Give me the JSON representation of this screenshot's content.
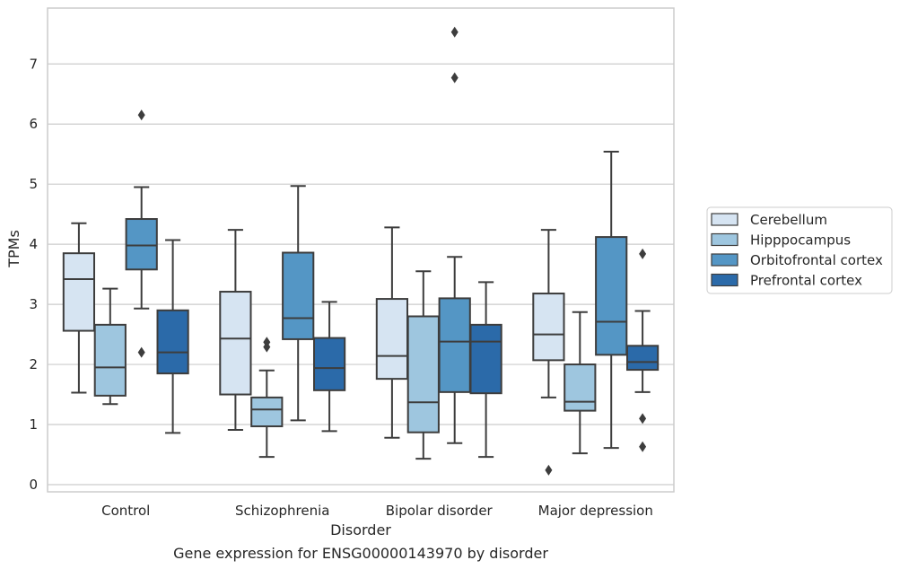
{
  "chart_data": {
    "type": "box",
    "title": "",
    "caption": "Gene expression for ENSG00000143970 by disorder",
    "xlabel": "Disorder",
    "ylabel": "TPMs",
    "ylim": [
      -0.12,
      7.93
    ],
    "yticks": [
      0,
      1,
      2,
      3,
      4,
      5,
      6,
      7
    ],
    "grid": true,
    "legend_position": "right",
    "categories": [
      "Control",
      "Schizophrenia",
      "Bipolar disorder",
      "Major depression"
    ],
    "series": [
      {
        "name": "Cerebellum",
        "color": "#d6e4f2",
        "boxes": [
          {
            "whislo": 1.53,
            "q1": 2.56,
            "med": 3.42,
            "q3": 3.85,
            "whishi": 4.35,
            "fliers": []
          },
          {
            "whislo": 0.91,
            "q1": 1.5,
            "med": 2.43,
            "q3": 3.21,
            "whishi": 4.24,
            "fliers": []
          },
          {
            "whislo": 0.78,
            "q1": 1.76,
            "med": 2.14,
            "q3": 3.09,
            "whishi": 4.28,
            "fliers": []
          },
          {
            "whislo": 1.45,
            "q1": 2.07,
            "med": 2.5,
            "q3": 3.18,
            "whishi": 4.24,
            "fliers": [
              0.24
            ]
          }
        ]
      },
      {
        "name": "Hipppocampus",
        "color": "#9ec6df",
        "boxes": [
          {
            "whislo": 1.34,
            "q1": 1.48,
            "med": 1.95,
            "q3": 2.66,
            "whishi": 3.26,
            "fliers": []
          },
          {
            "whislo": 0.46,
            "q1": 0.97,
            "med": 1.25,
            "q3": 1.45,
            "whishi": 1.9,
            "fliers": [
              2.29,
              2.37
            ]
          },
          {
            "whislo": 0.43,
            "q1": 0.87,
            "med": 1.37,
            "q3": 2.8,
            "whishi": 3.55,
            "fliers": []
          },
          {
            "whislo": 0.52,
            "q1": 1.23,
            "med": 1.38,
            "q3": 2.0,
            "whishi": 2.87,
            "fliers": []
          }
        ]
      },
      {
        "name": "Orbitofrontal cortex",
        "color": "#5496c5",
        "boxes": [
          {
            "whislo": 2.93,
            "q1": 3.58,
            "med": 3.98,
            "q3": 4.42,
            "whishi": 4.95,
            "fliers": [
              2.2,
              6.15
            ]
          },
          {
            "whislo": 1.07,
            "q1": 2.42,
            "med": 2.77,
            "q3": 3.86,
            "whishi": 4.97,
            "fliers": []
          },
          {
            "whislo": 0.69,
            "q1": 1.54,
            "med": 2.38,
            "q3": 3.1,
            "whishi": 3.79,
            "fliers": [
              6.77,
              7.53
            ]
          },
          {
            "whislo": 0.61,
            "q1": 2.16,
            "med": 2.71,
            "q3": 4.12,
            "whishi": 5.54,
            "fliers": []
          }
        ]
      },
      {
        "name": "Prefrontal cortex",
        "color": "#2b6aa9",
        "boxes": [
          {
            "whislo": 0.86,
            "q1": 1.85,
            "med": 2.2,
            "q3": 2.9,
            "whishi": 4.07,
            "fliers": []
          },
          {
            "whislo": 0.89,
            "q1": 1.57,
            "med": 1.94,
            "q3": 2.44,
            "whishi": 3.04,
            "fliers": []
          },
          {
            "whislo": 0.46,
            "q1": 1.52,
            "med": 2.38,
            "q3": 2.66,
            "whishi": 3.37,
            "fliers": []
          },
          {
            "whislo": 1.54,
            "q1": 1.91,
            "med": 2.04,
            "q3": 2.31,
            "whishi": 2.89,
            "fliers": [
              0.63,
              1.1,
              3.84
            ]
          }
        ]
      }
    ]
  }
}
